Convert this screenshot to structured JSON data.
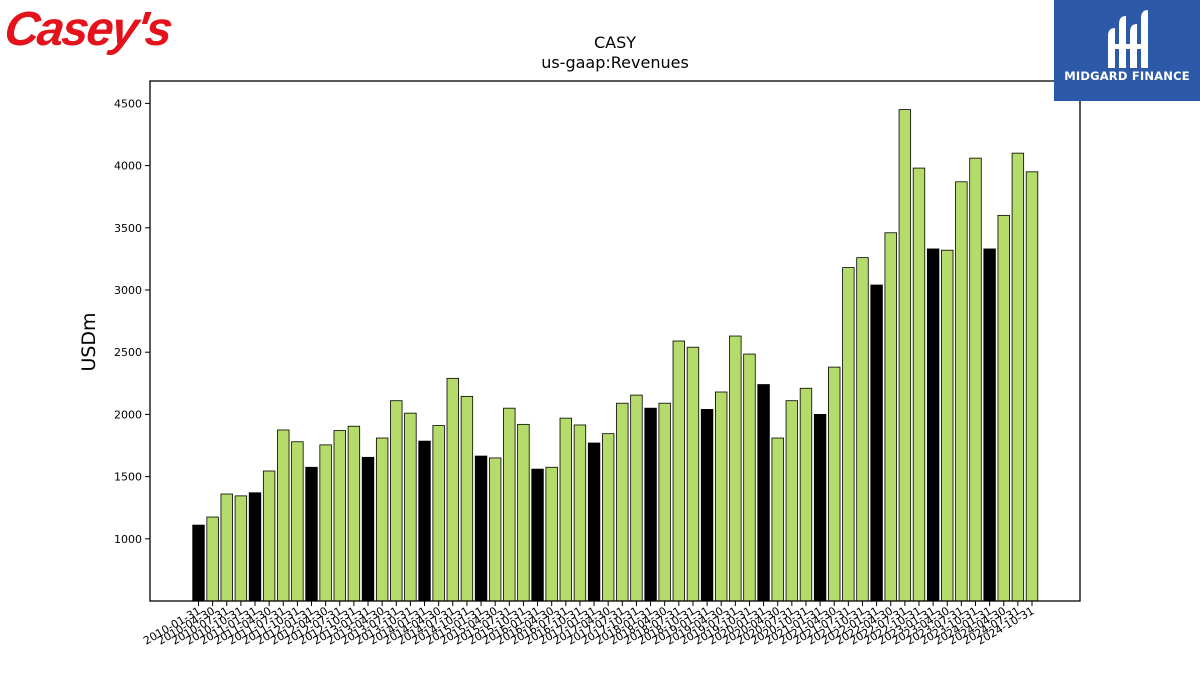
{
  "branding": {
    "company_logo_text": "Casey's",
    "publisher_name": "MIDGARD FINANCE",
    "colors": {
      "casey_red": "#e3121b",
      "midgard_blue": "#2d5aa8"
    }
  },
  "chart_data": {
    "type": "bar",
    "title": "CASY",
    "subtitle": "us-gaap:Revenues",
    "xlabel": "",
    "ylabel": "USDm",
    "ylim": [
      500,
      4680
    ],
    "yticks": [
      1000,
      1500,
      2000,
      2500,
      3000,
      3500,
      4000,
      4500
    ],
    "grid": false,
    "colors": {
      "quarter": "#b5dc6a",
      "fiscal_q4": "#000000",
      "edge": "#000000"
    },
    "categories": [
      "2010-01-31",
      "2010-04-30",
      "2010-07-31",
      "2010-10-31",
      "2011-01-31",
      "2011-04-30",
      "2011-07-31",
      "2011-10-31",
      "2012-01-31",
      "2012-04-30",
      "2012-07-31",
      "2012-10-31",
      "2013-01-31",
      "2013-04-30",
      "2013-07-31",
      "2013-10-31",
      "2014-01-31",
      "2014-04-30",
      "2014-07-31",
      "2014-10-31",
      "2015-01-31",
      "2015-04-30",
      "2015-07-31",
      "2015-10-31",
      "2016-01-31",
      "2016-04-30",
      "2016-07-31",
      "2016-10-31",
      "2017-01-31",
      "2017-04-30",
      "2017-07-31",
      "2017-10-31",
      "2018-01-31",
      "2018-04-30",
      "2018-07-31",
      "2018-10-31",
      "2019-01-31",
      "2019-04-30",
      "2019-07-31",
      "2019-10-31",
      "2020-01-31",
      "2020-04-30",
      "2020-07-31",
      "2020-10-31",
      "2021-01-31",
      "2021-04-30",
      "2021-07-31",
      "2021-10-31",
      "2022-01-31",
      "2022-04-30",
      "2022-07-31",
      "2022-10-31",
      "2023-01-31",
      "2023-04-30",
      "2023-07-31",
      "2023-10-31",
      "2024-01-31",
      "2024-04-30",
      "2024-07-31",
      "2024-10-31"
    ],
    "values": [
      1110,
      1175,
      1360,
      1345,
      1370,
      1545,
      1875,
      1780,
      1575,
      1755,
      1870,
      1905,
      1655,
      1810,
      2110,
      2010,
      1785,
      1910,
      2290,
      2145,
      1665,
      1650,
      2050,
      1920,
      1560,
      1575,
      1970,
      1915,
      1770,
      1845,
      2090,
      2155,
      2050,
      2090,
      2590,
      2540,
      2040,
      2180,
      2630,
      2485,
      2240,
      1810,
      2110,
      2210,
      2000,
      2380,
      3180,
      3260,
      3040,
      3460,
      4450,
      3980,
      3330,
      3320,
      3870,
      4060,
      3330,
      3600,
      4100,
      3950
    ],
    "fiscal_q4_flags": [
      1,
      0,
      0,
      0,
      1,
      0,
      0,
      0,
      1,
      0,
      0,
      0,
      1,
      0,
      0,
      0,
      1,
      0,
      0,
      0,
      1,
      0,
      0,
      0,
      1,
      0,
      0,
      0,
      1,
      0,
      0,
      0,
      1,
      0,
      0,
      0,
      1,
      0,
      0,
      0,
      1,
      0,
      0,
      0,
      1,
      0,
      0,
      0,
      1,
      0,
      0,
      0,
      1,
      0,
      0,
      0,
      1,
      0,
      0,
      0
    ]
  }
}
